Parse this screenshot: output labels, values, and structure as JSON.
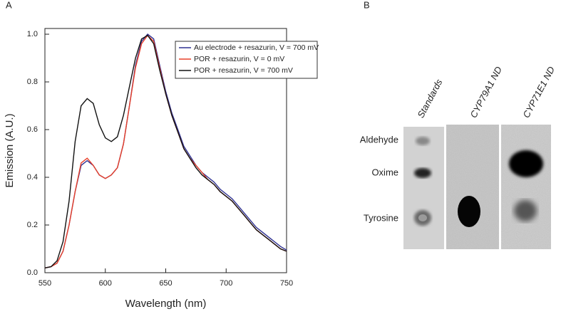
{
  "panel_a_label": "A",
  "chart_data": {
    "type": "line",
    "x_label": "Wavelength (nm)",
    "y_label": "Emission (A.U.)",
    "x": [
      550,
      555,
      560,
      565,
      570,
      575,
      580,
      585,
      590,
      595,
      600,
      605,
      610,
      615,
      620,
      625,
      630,
      635,
      640,
      645,
      650,
      655,
      660,
      665,
      670,
      675,
      680,
      685,
      690,
      695,
      700,
      705,
      710,
      715,
      720,
      725,
      730,
      735,
      740,
      745,
      750
    ],
    "series": [
      {
        "name": "Au electrode + resazurin, V = 700 mV",
        "color": "#2e3192",
        "values": [
          0.02,
          0.025,
          0.04,
          0.09,
          0.2,
          0.34,
          0.45,
          0.47,
          0.45,
          0.41,
          0.395,
          0.41,
          0.44,
          0.54,
          0.7,
          0.87,
          0.97,
          1.0,
          0.98,
          0.87,
          0.76,
          0.67,
          0.6,
          0.53,
          0.49,
          0.45,
          0.42,
          0.4,
          0.38,
          0.35,
          0.33,
          0.31,
          0.28,
          0.25,
          0.22,
          0.19,
          0.17,
          0.15,
          0.13,
          0.11,
          0.095
        ]
      },
      {
        "name": "POR + resazurin, V = 0 mV",
        "color": "#e8402a",
        "values": [
          0.02,
          0.025,
          0.04,
          0.09,
          0.2,
          0.34,
          0.46,
          0.48,
          0.45,
          0.41,
          0.395,
          0.41,
          0.44,
          0.54,
          0.7,
          0.86,
          0.96,
          0.995,
          0.97,
          0.86,
          0.75,
          0.66,
          0.59,
          0.52,
          0.48,
          0.45,
          0.42,
          0.39,
          0.37,
          0.34,
          0.32,
          0.3,
          0.27,
          0.24,
          0.21,
          0.18,
          0.16,
          0.14,
          0.12,
          0.1,
          0.09
        ]
      },
      {
        "name": "POR + resazurin, V = 700 mV",
        "color": "#111111",
        "values": [
          0.02,
          0.025,
          0.05,
          0.13,
          0.3,
          0.55,
          0.7,
          0.73,
          0.71,
          0.62,
          0.565,
          0.55,
          0.57,
          0.66,
          0.78,
          0.9,
          0.98,
          0.995,
          0.96,
          0.85,
          0.75,
          0.66,
          0.59,
          0.52,
          0.48,
          0.44,
          0.41,
          0.39,
          0.37,
          0.34,
          0.32,
          0.3,
          0.27,
          0.24,
          0.21,
          0.18,
          0.16,
          0.14,
          0.12,
          0.1,
          0.09
        ]
      }
    ],
    "xlim": [
      550,
      750
    ],
    "ylim": [
      0,
      1.024
    ],
    "xticks": [
      550,
      600,
      650,
      700,
      750
    ],
    "yticks": [
      {
        "value": 0,
        "label": "0.0"
      },
      0.2,
      0.4,
      0.6,
      0.8,
      {
        "value": 1,
        "label": "1.0"
      }
    ],
    "legend": "upper right"
  },
  "panel_b": {
    "label": "B",
    "lanes": [
      "Standards",
      "CYP79A1 ND",
      "CYP71E1 ND"
    ],
    "compounds": [
      "Aldehyde",
      "Oxime",
      "Tyrosine"
    ]
  }
}
